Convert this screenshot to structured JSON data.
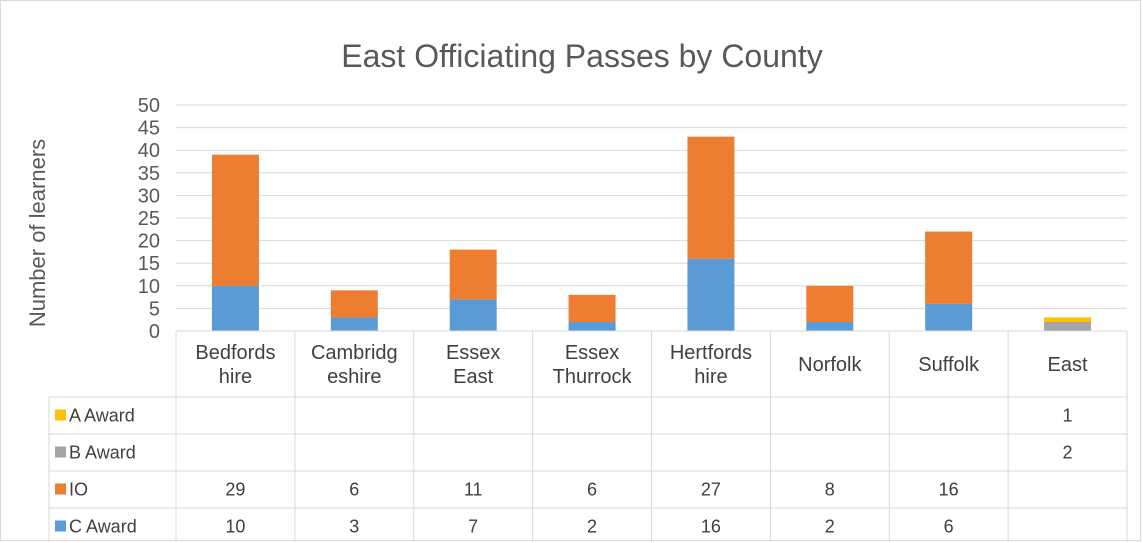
{
  "chart_data": {
    "type": "bar",
    "stacked": true,
    "title": "East Officiating Passes by County",
    "xlabel": "",
    "ylabel": "Number of learners",
    "ylim": [
      0,
      50
    ],
    "yticks": [
      0,
      5,
      10,
      15,
      20,
      25,
      30,
      35,
      40,
      45,
      50
    ],
    "grid": true,
    "legend": "data-table",
    "categories": [
      [
        "Bedfords",
        "hire"
      ],
      [
        "Cambridg",
        "eshire"
      ],
      [
        "Essex",
        "East"
      ],
      [
        "Essex",
        "Thurrock"
      ],
      [
        "Hertfords",
        "hire"
      ],
      [
        "Norfolk"
      ],
      [
        "Suffolk"
      ],
      [
        "East"
      ]
    ],
    "series": [
      {
        "name": "C Award",
        "color": "#5b9bd5",
        "values": [
          10,
          3,
          7,
          2,
          16,
          2,
          6,
          null
        ]
      },
      {
        "name": "IO",
        "color": "#ed7d31",
        "values": [
          29,
          6,
          11,
          6,
          27,
          8,
          16,
          null
        ]
      },
      {
        "name": "B Award",
        "color": "#a5a5a5",
        "values": [
          null,
          null,
          null,
          null,
          null,
          null,
          null,
          2
        ]
      },
      {
        "name": "A Award",
        "color": "#ffc000",
        "values": [
          null,
          null,
          null,
          null,
          null,
          null,
          null,
          1
        ]
      }
    ],
    "table_row_order": [
      "A Award",
      "B Award",
      "IO",
      "C Award"
    ]
  }
}
